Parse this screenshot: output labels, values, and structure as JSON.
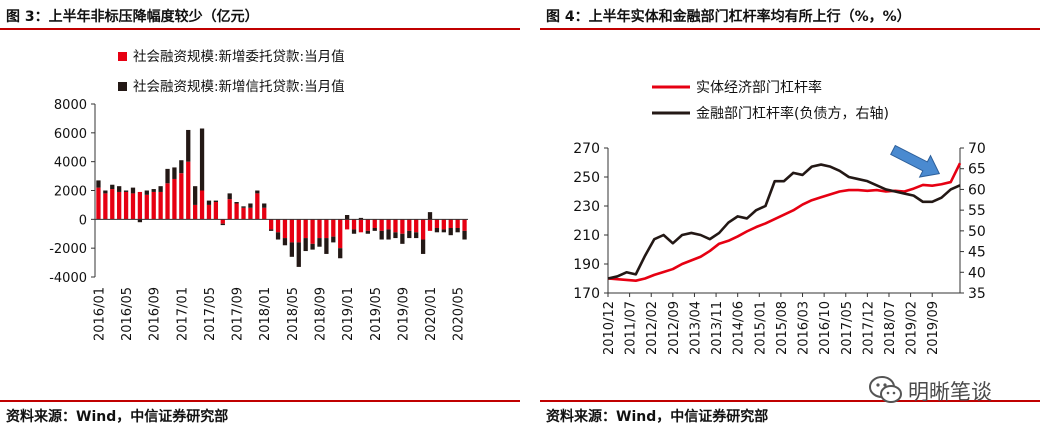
{
  "left": {
    "title": "图 3：上半年非标压降幅度较少（亿元）",
    "source": "资料来源：Wind，中信证券研究部"
  },
  "right": {
    "title": "图 4：上半年实体和金融部门杠杆率均有所上行（%，%）",
    "source": "资料来源：Wind，中信证券研究部"
  },
  "watermark": {
    "text": "明晰笔谈",
    "icon": "wechat-icon"
  },
  "colors": {
    "red": "#e60012",
    "black": "#231815",
    "arrow": "#4a8ad0",
    "rule": "#c00000"
  },
  "chart_data": [
    {
      "type": "bar",
      "stacked": true,
      "legend_position": "top",
      "categories": [
        "2016/01",
        "2016/02",
        "2016/03",
        "2016/04",
        "2016/05",
        "2016/06",
        "2016/07",
        "2016/08",
        "2016/09",
        "2016/10",
        "2016/11",
        "2016/12",
        "2017/01",
        "2017/02",
        "2017/03",
        "2017/04",
        "2017/05",
        "2017/06",
        "2017/07",
        "2017/08",
        "2017/09",
        "2017/10",
        "2017/11",
        "2017/12",
        "2018/01",
        "2018/02",
        "2018/03",
        "2018/04",
        "2018/05",
        "2018/06",
        "2018/07",
        "2018/08",
        "2018/09",
        "2018/10",
        "2018/11",
        "2018/12",
        "2019/01",
        "2019/02",
        "2019/03",
        "2019/04",
        "2019/05",
        "2019/06",
        "2019/07",
        "2019/08",
        "2019/09",
        "2019/10",
        "2019/11",
        "2019/12",
        "2020/01",
        "2020/02",
        "2020/03",
        "2020/04",
        "2020/05",
        "2020/06"
      ],
      "tick_labels": [
        "2016/01",
        "2016/05",
        "2016/09",
        "2017/01",
        "2017/05",
        "2017/09",
        "2018/01",
        "2018/05",
        "2018/09",
        "2019/01",
        "2019/05",
        "2019/09",
        "2020/01",
        "2020/05"
      ],
      "series": [
        {
          "name": "社会融资规模:新增信托贷款:当月值",
          "color": "#231815",
          "values": [
            500,
            200,
            300,
            400,
            100,
            400,
            -200,
            300,
            200,
            400,
            1000,
            800,
            900,
            2200,
            1300,
            4300,
            300,
            100,
            -100,
            400,
            100,
            100,
            300,
            200,
            300,
            -100,
            -500,
            -500,
            -1000,
            -1700,
            -900,
            -400,
            -600,
            -1100,
            -400,
            -700,
            300,
            -300,
            100,
            -200,
            -200,
            -600,
            -700,
            -400,
            -700,
            -500,
            -400,
            -1000,
            500,
            -300,
            -200,
            -500,
            -300,
            -600
          ]
        },
        {
          "name": "社会融资规模:新增委托贷款:当月值",
          "color": "#e60012",
          "values": [
            2200,
            1800,
            2100,
            1900,
            1900,
            1800,
            1900,
            1700,
            1900,
            1900,
            2500,
            2800,
            3200,
            4000,
            1000,
            2000,
            1000,
            1200,
            -300,
            1400,
            1100,
            800,
            800,
            1800,
            800,
            -700,
            -900,
            -1300,
            -1600,
            -1600,
            -1300,
            -1700,
            -1300,
            -1300,
            -1200,
            -2000,
            -700,
            -700,
            -900,
            -800,
            -600,
            -800,
            -700,
            -900,
            -1000,
            -800,
            -900,
            -1400,
            -800,
            -600,
            -700,
            -600,
            -600,
            -800
          ]
        }
      ],
      "ylim": [
        -4000,
        8000
      ],
      "yticks": [
        -4000,
        -2000,
        0,
        2000,
        4000,
        6000,
        8000
      ],
      "title": "",
      "xlabel": "",
      "ylabel": ""
    },
    {
      "type": "line",
      "legend_position": "top-left",
      "x_ticks": [
        "2010/12",
        "2011/07",
        "2012/02",
        "2012/09",
        "2013/04",
        "2013/11",
        "2014/06",
        "2015/01",
        "2015/08",
        "2016/03",
        "2016/10",
        "2017/05",
        "2017/12",
        "2018/07",
        "2019/02",
        "2019/09"
      ],
      "ylim_left": [
        170,
        270
      ],
      "yticks_left": [
        170,
        190,
        210,
        230,
        250,
        270
      ],
      "ylim_right": [
        35,
        70
      ],
      "yticks_right": [
        35,
        40,
        45,
        50,
        55,
        60,
        65,
        70
      ],
      "series": [
        {
          "name": "实体经济部门杠杆率",
          "axis": "left",
          "color": "#e60012",
          "x": [
            "2010/12",
            "2011/03",
            "2011/06",
            "2011/09",
            "2011/12",
            "2012/03",
            "2012/06",
            "2012/09",
            "2012/12",
            "2013/03",
            "2013/06",
            "2013/09",
            "2013/12",
            "2014/03",
            "2014/06",
            "2014/09",
            "2014/12",
            "2015/03",
            "2015/06",
            "2015/09",
            "2015/12",
            "2016/03",
            "2016/06",
            "2016/09",
            "2016/12",
            "2017/03",
            "2017/06",
            "2017/09",
            "2017/12",
            "2018/03",
            "2018/06",
            "2018/09",
            "2018/12",
            "2019/03",
            "2019/06",
            "2019/09",
            "2019/12",
            "2020/03",
            "2020/06"
          ],
          "y": [
            180,
            179.5,
            179,
            178.5,
            180,
            182.5,
            184.5,
            186.5,
            190,
            192.5,
            195,
            199,
            204,
            206,
            209,
            212.5,
            215.5,
            218,
            221,
            224,
            227,
            231,
            234,
            236,
            238,
            240,
            241,
            241,
            240.5,
            241,
            240,
            240.5,
            240,
            242,
            244.5,
            244,
            245,
            246.5,
            259.5
          ]
        },
        {
          "name": "金融部门杠杆率(负债方，右轴)",
          "axis": "right",
          "color": "#231815",
          "x": [
            "2010/12",
            "2011/03",
            "2011/06",
            "2011/09",
            "2011/12",
            "2012/03",
            "2012/06",
            "2012/09",
            "2012/12",
            "2013/03",
            "2013/06",
            "2013/09",
            "2013/12",
            "2014/03",
            "2014/06",
            "2014/09",
            "2014/12",
            "2015/03",
            "2015/06",
            "2015/09",
            "2015/12",
            "2016/03",
            "2016/06",
            "2016/09",
            "2016/12",
            "2017/03",
            "2017/06",
            "2017/09",
            "2017/12",
            "2018/03",
            "2018/06",
            "2018/09",
            "2018/12",
            "2019/03",
            "2019/06",
            "2019/09",
            "2019/12",
            "2020/03",
            "2020/06"
          ],
          "y": [
            38.5,
            39,
            40,
            39.5,
            44,
            48,
            49,
            47,
            49,
            49.5,
            49,
            48,
            49.5,
            52,
            53.5,
            53,
            55,
            56,
            62,
            62,
            64,
            63.5,
            65.5,
            66,
            65.5,
            64.5,
            63,
            62.5,
            62,
            61,
            60,
            59.5,
            59,
            58.5,
            57,
            57,
            58,
            60,
            61
          ]
        }
      ],
      "annotation": {
        "type": "arrow",
        "color": "#4a8ad0"
      },
      "title": "",
      "xlabel": "",
      "ylabel": ""
    }
  ]
}
